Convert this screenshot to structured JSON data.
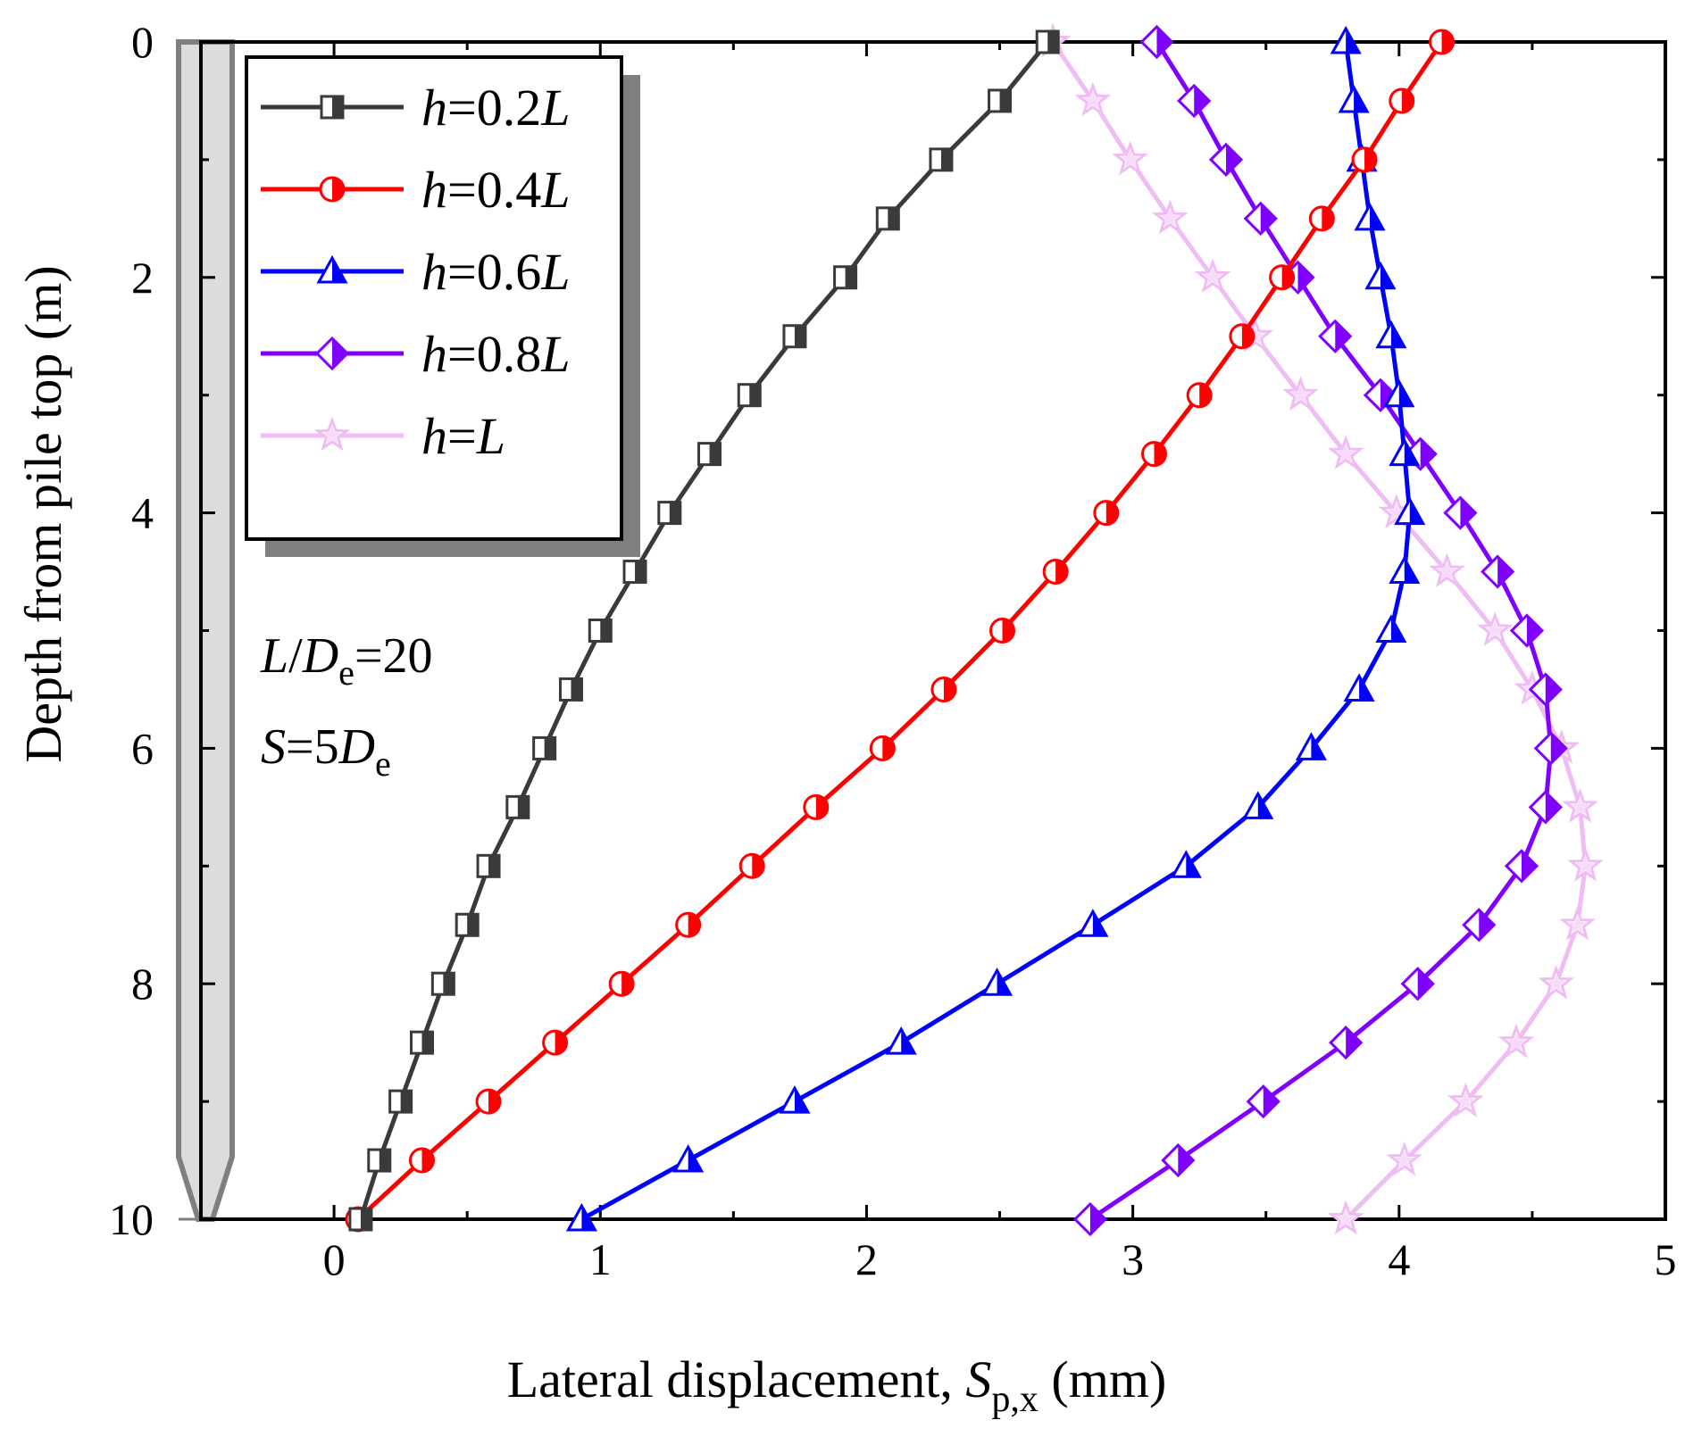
{
  "chart_data": {
    "type": "line",
    "title": "",
    "xlabel": "Lateral displacement, ",
    "xlabel_symbol": "S",
    "xlabel_sub": "p,x",
    "xlabel_unit": " (mm)",
    "ylabel": "Depth from pile top (m)",
    "xlim": [
      -0.5,
      5
    ],
    "ylim": [
      0,
      10
    ],
    "y_inverted": true,
    "x_ticks": [
      0,
      1,
      2,
      3,
      4,
      5
    ],
    "y_ticks": [
      0,
      2,
      4,
      6,
      8,
      10
    ],
    "x_tick_labels": [
      "0",
      "1",
      "2",
      "3",
      "4",
      "5"
    ],
    "y_tick_labels": [
      "0",
      "2",
      "4",
      "6",
      "8",
      "10"
    ],
    "legend_position": "top-left",
    "colors": {
      "h02": "#3a3a3a",
      "h04": "#ff0000",
      "h06": "#0000ff",
      "h08": "#7f00ff",
      "h10": "#f0bcf4"
    },
    "depth": [
      0,
      0.5,
      1,
      1.5,
      2,
      2.5,
      3,
      3.5,
      4,
      4.5,
      5,
      5.5,
      6,
      6.5,
      7,
      7.5,
      8,
      8.5,
      9,
      9.5,
      10
    ],
    "series": [
      {
        "id": "h02",
        "name_italic": "h",
        "name_mid": "=0.2",
        "name_tail": "L",
        "marker": "square",
        "values": [
          2.68,
          2.5,
          2.28,
          2.08,
          1.92,
          1.73,
          1.56,
          1.41,
          1.26,
          1.13,
          1.0,
          0.89,
          0.79,
          0.69,
          0.58,
          0.5,
          0.41,
          0.33,
          0.25,
          0.17,
          0.1
        ]
      },
      {
        "id": "h04",
        "name_italic": "h",
        "name_mid": "=0.4",
        "name_tail": "L",
        "marker": "circle",
        "values": [
          4.16,
          4.01,
          3.87,
          3.71,
          3.56,
          3.41,
          3.25,
          3.08,
          2.9,
          2.71,
          2.51,
          2.29,
          2.06,
          1.81,
          1.57,
          1.33,
          1.08,
          0.83,
          0.58,
          0.33,
          0.09
        ]
      },
      {
        "id": "h06",
        "name_italic": "h",
        "name_mid": "=0.6",
        "name_tail": "L",
        "marker": "triangle",
        "values": [
          3.8,
          3.83,
          3.86,
          3.89,
          3.93,
          3.97,
          4.0,
          4.02,
          4.04,
          4.02,
          3.97,
          3.85,
          3.67,
          3.47,
          3.2,
          2.85,
          2.49,
          2.13,
          1.73,
          1.33,
          0.93
        ]
      },
      {
        "id": "h08",
        "name_italic": "h",
        "name_mid": "=0.8",
        "name_tail": "L",
        "marker": "diamond",
        "values": [
          3.09,
          3.23,
          3.35,
          3.48,
          3.62,
          3.76,
          3.93,
          4.08,
          4.23,
          4.37,
          4.48,
          4.55,
          4.57,
          4.55,
          4.46,
          4.3,
          4.07,
          3.8,
          3.49,
          3.17,
          2.84
        ]
      },
      {
        "id": "h10",
        "name_italic": "h",
        "name_mid": "=",
        "name_tail": "L",
        "marker": "star",
        "values": [
          2.7,
          2.85,
          2.99,
          3.14,
          3.3,
          3.46,
          3.63,
          3.8,
          3.99,
          4.18,
          4.36,
          4.5,
          4.61,
          4.68,
          4.7,
          4.67,
          4.59,
          4.44,
          4.25,
          4.02,
          3.8
        ]
      }
    ],
    "annotations": {
      "line1_a": "L",
      "line1_b": "/",
      "line1_c": "D",
      "line1_sub": "e",
      "line1_d": "=20",
      "line2_a": "S",
      "line2_b": "=5",
      "line2_c": "D",
      "line2_sub": "e"
    }
  }
}
